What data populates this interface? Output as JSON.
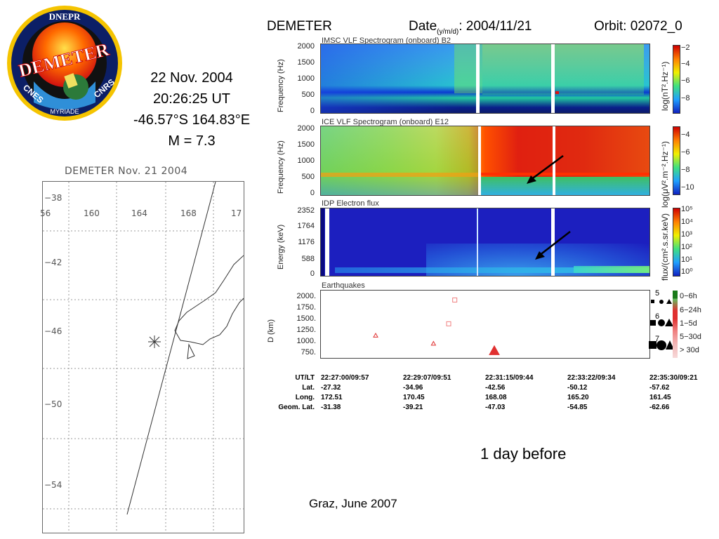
{
  "logo": {
    "top_text": "DNEPR",
    "name": "DEMETER",
    "left_text": "CNES",
    "right_text": "CNRS",
    "bottom_text": "MYRIADE"
  },
  "event": {
    "date": "22 Nov. 2004",
    "time": "20:26:25 UT",
    "coords": "-46.57°S 164.83°E",
    "magnitude": "M = 7.3"
  },
  "header": {
    "mission": "DEMETER",
    "date_label": "Date",
    "date_fmt": "(y/m/d)",
    "date_value": ": 2004/11/21",
    "orbit": "Orbit: 02072_0"
  },
  "map": {
    "title": "DEMETER Nov. 21 2004",
    "lon_ticks": [
      "56",
      "160",
      "164",
      "168",
      "17"
    ],
    "lat_ticks": [
      "−38",
      "−42",
      "−46",
      "−50",
      "−54"
    ]
  },
  "panels": {
    "p1": {
      "title": "IMSC VLF Spectrogram (onboard) B2",
      "ylabel": "Frequency (Hz)",
      "yticks": [
        "2000",
        "1500",
        "1000",
        "500",
        "0"
      ],
      "cbar_label": "log(nT².Hz⁻¹)",
      "cbar_ticks": [
        "−2",
        "−4",
        "−6",
        "−8"
      ]
    },
    "p2": {
      "title": "ICE VLF Spectrogram (onboard) E12",
      "ylabel": "Frequency (Hz)",
      "yticks": [
        "2000",
        "1500",
        "1000",
        "500",
        "0"
      ],
      "cbar_label": "log(μV².m⁻².Hz⁻¹)",
      "cbar_ticks": [
        "−4",
        "−6",
        "−8",
        "−10"
      ]
    },
    "p3": {
      "title": "IDP Electron flux",
      "ylabel": "Energy (keV)",
      "yticks": [
        "2352",
        "1764",
        "1176",
        "588",
        "0"
      ],
      "cbar_label": "flux/(cm².s.sr.keV)",
      "cbar_ticks": [
        "10⁵",
        "10⁴",
        "10³",
        "10²",
        "10¹",
        "10⁰"
      ]
    },
    "p4": {
      "title": "Earthquakes",
      "ylabel": "D (km)",
      "yticks": [
        "2000.",
        "1750.",
        "1500.",
        "1250.",
        "1000.",
        "750."
      ],
      "mag_labels": [
        "5",
        "6",
        "7"
      ],
      "legend": [
        "0−6h",
        "6−24h",
        "1−5d",
        "5−30d",
        "> 30d"
      ]
    }
  },
  "chart_data": {
    "type": "scatter",
    "title": "Earthquakes",
    "xlabel": "UT",
    "ylabel": "D (km)",
    "ylim": [
      600,
      2100
    ],
    "x_range": [
      "22:27:00",
      "22:36:00"
    ],
    "series": [
      {
        "name": "0−6h",
        "points": []
      },
      {
        "name": "6−24h",
        "points": []
      },
      {
        "name": "1−5d",
        "points": [
          {
            "x": "22:28:30",
            "y": 1100,
            "marker": "triangle",
            "mag": 5
          },
          {
            "x": "22:30:05",
            "y": 920,
            "marker": "triangle",
            "mag": 5
          },
          {
            "x": "22:31:45",
            "y": 760,
            "marker": "triangle",
            "mag": 7
          }
        ]
      },
      {
        "name": "5−30d",
        "points": [
          {
            "x": "22:30:40",
            "y": 1890,
            "marker": "square",
            "mag": 5
          },
          {
            "x": "22:30:30",
            "y": 1360,
            "marker": "square",
            "mag": 5
          }
        ]
      },
      {
        "name": "> 30d",
        "points": []
      }
    ],
    "colors": {
      "0−6h": "#1a7a1a",
      "6−24h": "#5fbf5f",
      "1−5d": "#e03030",
      "5−30d": "#f08080",
      "> 30d": "#f2b8b8"
    }
  },
  "orbit_info": {
    "row_labels": [
      "UT/LT",
      "Lat.",
      "Long.",
      "Geom. Lat."
    ],
    "columns": [
      [
        "22:27:00/09:57",
        "-27.32",
        "172.51",
        "-31.38"
      ],
      [
        "22:29:07/09:51",
        "-34.96",
        "170.45",
        "-39.21"
      ],
      [
        "22:31:15/09:44",
        "-42.56",
        "168.08",
        "-47.03"
      ],
      [
        "22:33:22/09:34",
        "-50.12",
        "165.20",
        "-54.85"
      ],
      [
        "22:35:30/09:21",
        "-57.62",
        "161.45",
        "-62.66"
      ]
    ]
  },
  "notes": {
    "day_before": "1 day before",
    "footer": "Graz, June 2007"
  }
}
